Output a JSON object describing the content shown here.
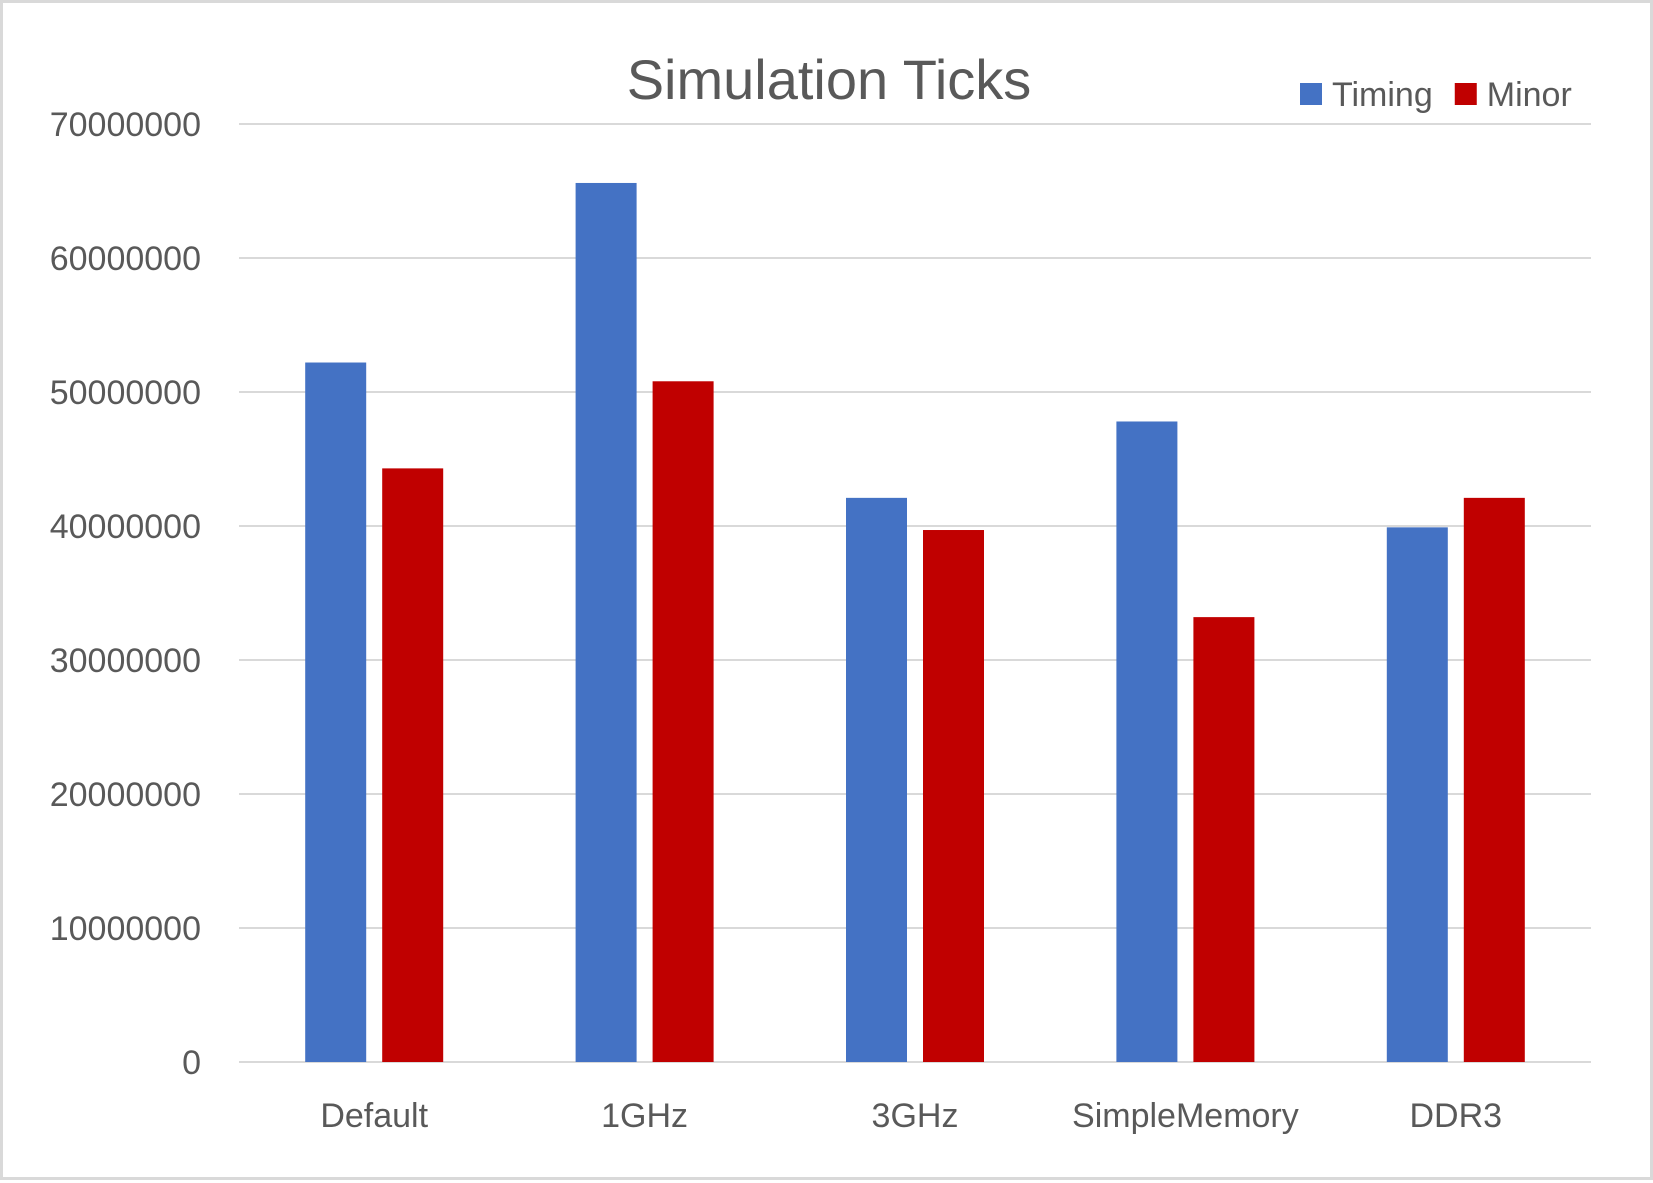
{
  "chart_data": {
    "type": "bar",
    "title": "Simulation Ticks",
    "xlabel": "",
    "ylabel": "",
    "categories": [
      "Default",
      "1GHz",
      "3GHz",
      "SimpleMemory",
      "DDR3"
    ],
    "series": [
      {
        "name": "Timing",
        "color": "#4472c4",
        "values": [
          52200000,
          65600000,
          42100000,
          47800000,
          39900000
        ]
      },
      {
        "name": "Minor",
        "color": "#c00000",
        "values": [
          44300000,
          50800000,
          39700000,
          33200000,
          42100000
        ]
      }
    ],
    "ylim": [
      0,
      70000000
    ],
    "yticks": [
      "0",
      "10000000",
      "20000000",
      "30000000",
      "40000000",
      "50000000",
      "60000000",
      "70000000"
    ],
    "grid": true,
    "legend_position": "top-right"
  }
}
